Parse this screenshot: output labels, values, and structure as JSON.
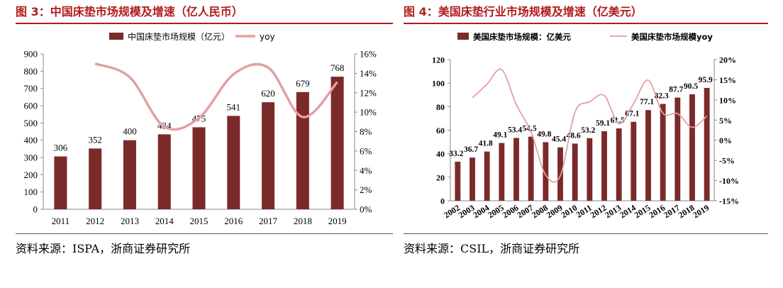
{
  "figures": [
    {
      "title": "图 3：中国床垫市场规模及增速（亿人民币）",
      "source": "资料来源：ISPA，浙商证券研究所"
    },
    {
      "title": "图 4：美国床垫行业市场规模及增速（亿美元）",
      "source": "资料来源：CSIL，浙商证券研究所"
    }
  ],
  "colors": {
    "bar": "#7b2a2a",
    "line": "#e3a0a2",
    "title": "#b01c1c"
  },
  "chart_data": [
    {
      "type": "bar",
      "title": "",
      "categories": [
        "2011",
        "2012",
        "2013",
        "2014",
        "2015",
        "2016",
        "2017",
        "2018",
        "2019"
      ],
      "series": [
        {
          "name": "中国床垫市场规模（亿元）",
          "type": "bar",
          "axis": "left",
          "values": [
            306,
            352,
            400,
            434,
            475,
            541,
            620,
            679,
            768
          ]
        },
        {
          "name": "yoy",
          "type": "line",
          "axis": "right",
          "smooth": true,
          "values": [
            null,
            15.0,
            13.6,
            8.5,
            9.4,
            13.9,
            14.6,
            9.5,
            13.1
          ]
        }
      ],
      "ylim": [
        0,
        900
      ],
      "yticks": [
        0,
        100,
        200,
        300,
        400,
        500,
        600,
        700,
        800,
        900
      ],
      "y2lim": [
        0,
        16
      ],
      "y2ticks": [
        "0%",
        "2%",
        "4%",
        "6%",
        "8%",
        "10%",
        "12%",
        "14%",
        "16%"
      ],
      "data_labels": [
        "306",
        "352",
        "400",
        "434",
        "475",
        "541",
        "620",
        "679",
        "768"
      ],
      "legend": "top"
    },
    {
      "type": "bar",
      "title": "",
      "categories": [
        "2002",
        "2003",
        "2004",
        "2005",
        "2006",
        "2007",
        "2008",
        "2009",
        "2010",
        "2011",
        "2012",
        "2013",
        "2014",
        "2015",
        "2016",
        "2017",
        "2018",
        "2019"
      ],
      "series": [
        {
          "name": "美国床垫市场规模：亿美元",
          "type": "bar",
          "axis": "left",
          "values": [
            33.2,
            36.7,
            41.8,
            49.1,
            53.4,
            54.5,
            49.8,
            45.4,
            48.6,
            53.2,
            59.1,
            61.5,
            67.1,
            77.1,
            82.3,
            87.7,
            90.5,
            95.9
          ]
        },
        {
          "name": "美国床垫市场规模yoy",
          "type": "line",
          "axis": "right",
          "smooth": true,
          "values": [
            null,
            10.5,
            13.9,
            17.5,
            8.8,
            2.1,
            -8.6,
            -8.8,
            7.0,
            9.5,
            11.1,
            4.1,
            9.1,
            14.9,
            6.7,
            6.6,
            3.2,
            6.0
          ]
        }
      ],
      "ylim": [
        0,
        120
      ],
      "yticks": [
        0,
        20,
        40,
        60,
        80,
        100,
        120
      ],
      "y2lim": [
        -15,
        20
      ],
      "y2ticks": [
        "-15%",
        "-10%",
        "-5%",
        "0%",
        "5%",
        "10%",
        "15%",
        "20%"
      ],
      "data_labels": [
        "33.2",
        "36.7",
        "41.8",
        "49.1",
        "53.4",
        "54.5",
        "49.8",
        "45.4",
        "48.6",
        "53.2",
        "59.1",
        "61.5",
        "67.1",
        "77.1",
        "82.3",
        "87.7",
        "90.5",
        "95.9"
      ],
      "legend": "top"
    }
  ]
}
